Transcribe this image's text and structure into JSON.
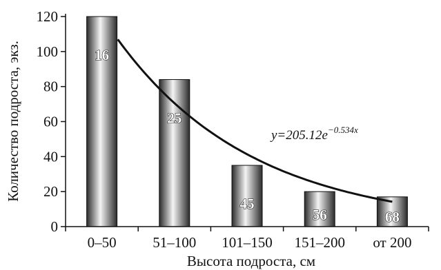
{
  "chart_data": {
    "type": "bar",
    "categories": [
      "0–50",
      "51–100",
      "101–150",
      "151–200",
      "от 200"
    ],
    "values": [
      120,
      84,
      35,
      20,
      17
    ],
    "bar_labels": [
      "16",
      "25",
      "45",
      "56",
      "68"
    ],
    "xlabel": "Высота подроста, см",
    "ylabel": "Количество подроста, экз.",
    "ylim": [
      0,
      120
    ],
    "yticks": [
      0,
      20,
      40,
      60,
      80,
      100,
      120
    ],
    "grid": false,
    "legend": "none",
    "trendline": {
      "type": "exponential",
      "a": 205.12,
      "b": -0.534,
      "equation_prefix": "y=205.12e",
      "equation_exponent": "−0.534x"
    },
    "colors": {
      "bar_dark": "#2b2b2b",
      "bar_light": "#f4f4f4",
      "axis": "#111111"
    }
  }
}
